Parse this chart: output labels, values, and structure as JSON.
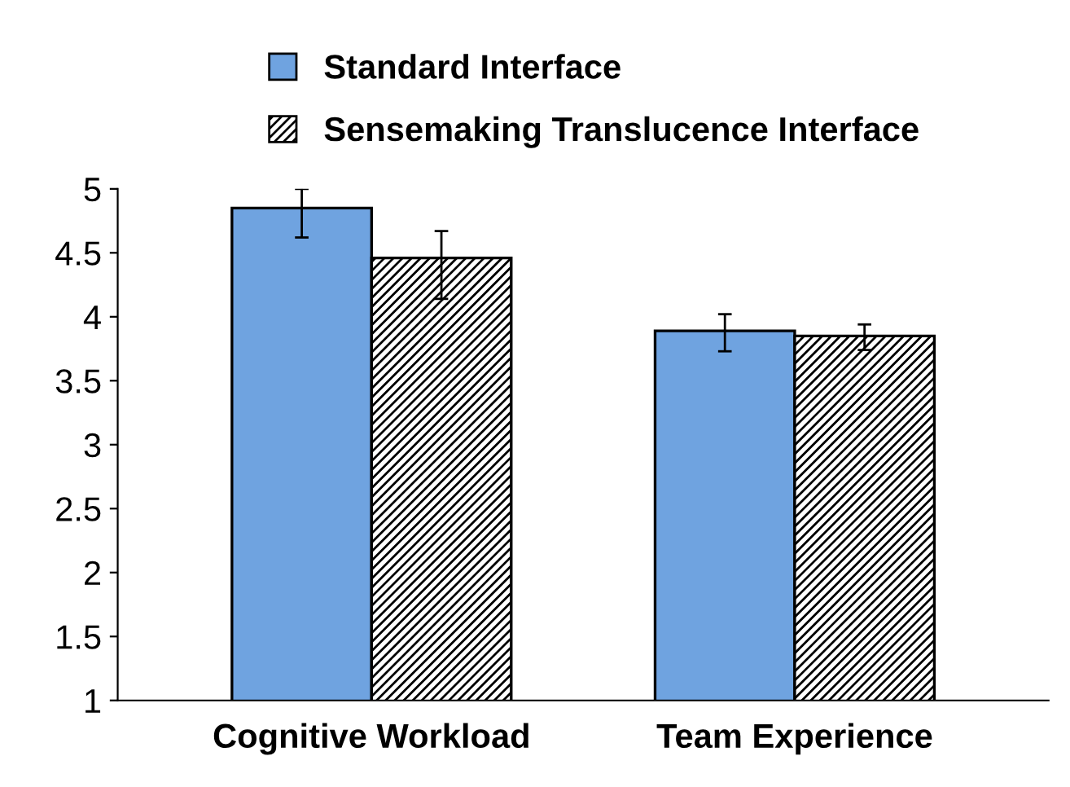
{
  "chart_data": {
    "type": "bar",
    "categories": [
      "Cognitive Workload",
      "Team Experience"
    ],
    "series": [
      {
        "name": "Standard Interface",
        "color": "#6fa3e0",
        "values": [
          4.85,
          3.89
        ],
        "errors": [
          [
            4.62,
            5.0
          ],
          [
            3.73,
            4.02
          ]
        ]
      },
      {
        "name": "Sensemaking Translucence Interface",
        "color": "#000000",
        "values": [
          4.46,
          3.85
        ],
        "errors": [
          [
            4.14,
            4.67
          ],
          [
            3.74,
            3.94
          ]
        ]
      }
    ],
    "ylim": [
      1,
      5
    ],
    "yticks": [
      1,
      1.5,
      2,
      2.5,
      3,
      3.5,
      4,
      4.5,
      5
    ],
    "grid": false,
    "legend": "top"
  }
}
